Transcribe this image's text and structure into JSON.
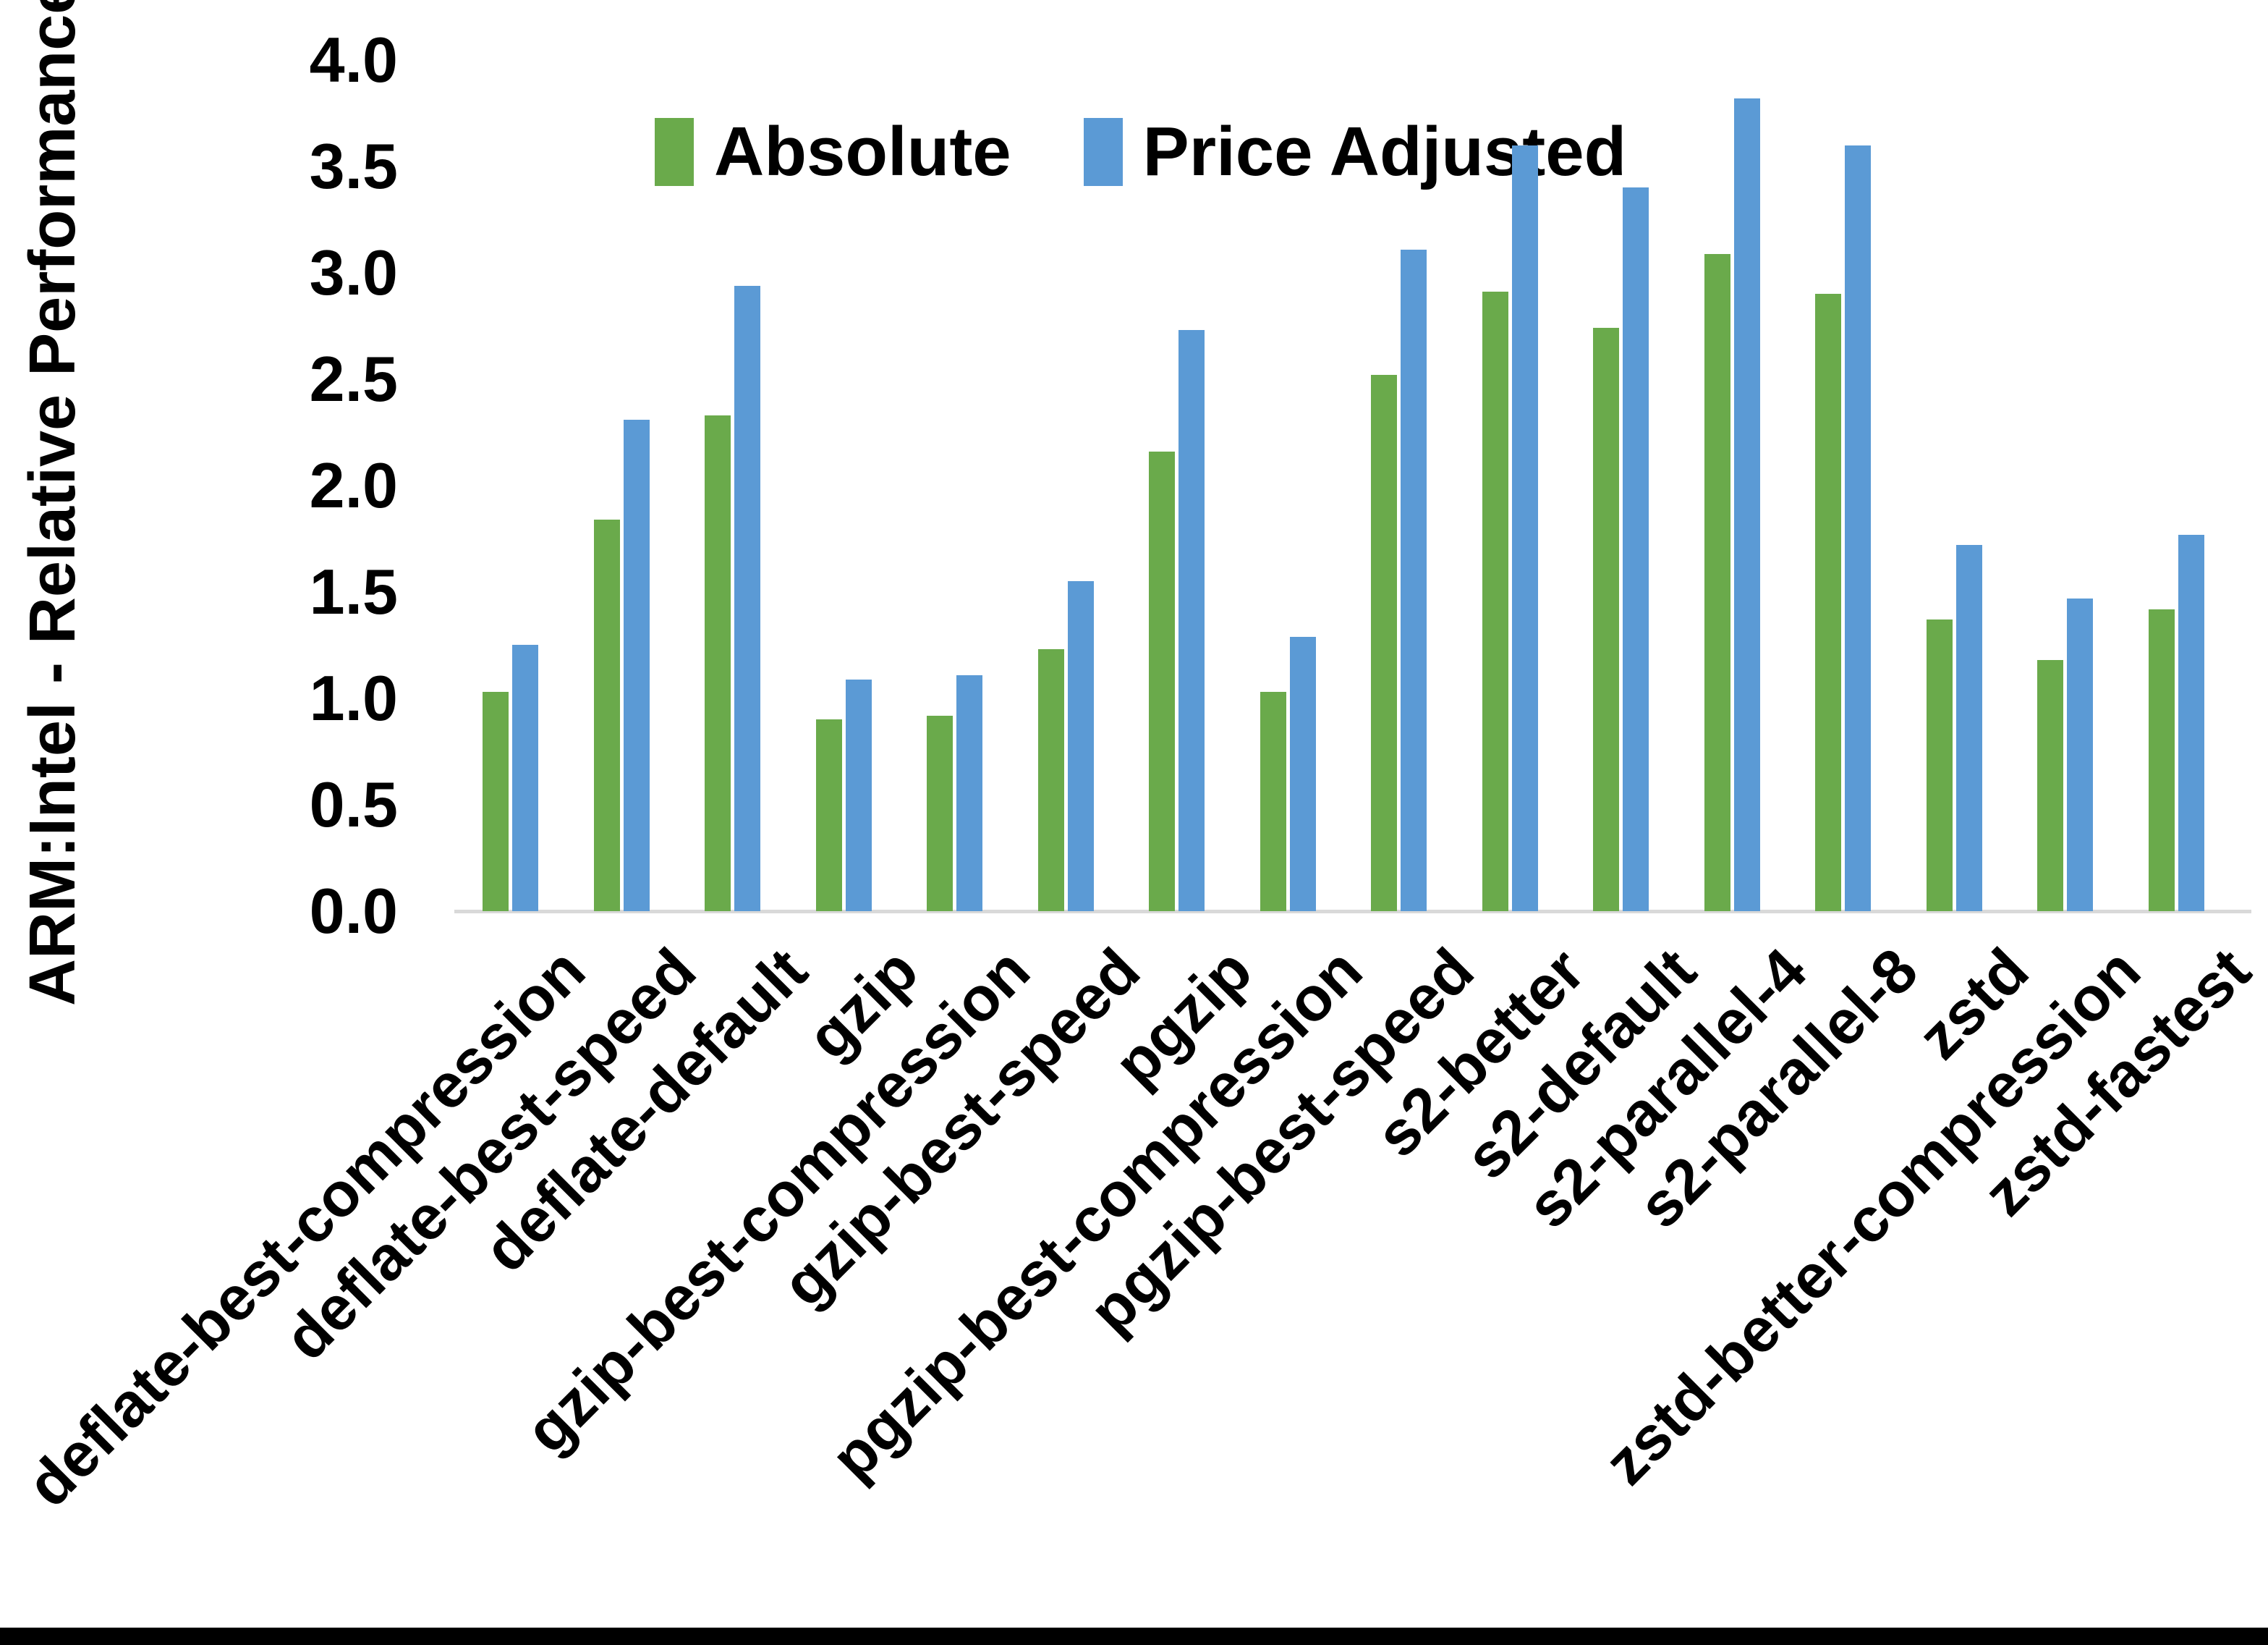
{
  "page": {
    "background": "#ffffff",
    "bottom_bar_color": "#000000"
  },
  "chart_data": {
    "type": "bar",
    "title": "",
    "xlabel": "",
    "ylabel": "ARM:Intel - Relative Performance",
    "ylim": [
      0.0,
      4.0
    ],
    "ytick_step": 0.5,
    "ytick_labels": [
      "0.0",
      "0.5",
      "1.0",
      "1.5",
      "2.0",
      "2.5",
      "3.0",
      "3.5",
      "4.0"
    ],
    "grid": false,
    "legend_position": "top-center",
    "baseline_color": "#d9d9d9",
    "categories": [
      "deflate-best-compression",
      "deflate-best-speed",
      "deflate-default",
      "gzip",
      "gzip-best-compression",
      "gzip-best-speed",
      "pgzip",
      "pgzip-best-compression",
      "pgzip-best-speed",
      "s2-better",
      "s2-default",
      "s2-parallel-4",
      "s2-parallel-8",
      "zstd",
      "zstd-better-compression",
      "zstd-fastest"
    ],
    "series": [
      {
        "name": "Absolute",
        "color": "#6aaa4b",
        "values": [
          1.03,
          1.84,
          2.33,
          0.9,
          0.92,
          1.23,
          2.16,
          1.03,
          2.52,
          2.91,
          2.74,
          3.09,
          2.9,
          1.37,
          1.18,
          1.42
        ]
      },
      {
        "name": "Price Adjusted",
        "color": "#5b9ad5",
        "values": [
          1.25,
          2.31,
          2.94,
          1.09,
          1.11,
          1.55,
          2.73,
          1.29,
          3.11,
          3.6,
          3.4,
          3.82,
          3.6,
          1.72,
          1.47,
          1.77
        ]
      }
    ]
  }
}
